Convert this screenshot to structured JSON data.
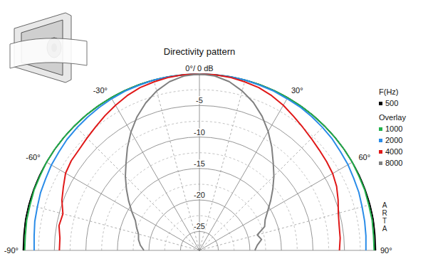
{
  "chart_data": {
    "type": "polar",
    "title": "Directivity pattern",
    "annotations": [
      "F(Hz)",
      "Overlay",
      "ARTA"
    ],
    "grid": true,
    "legend": "right",
    "x": [
      -90,
      -85,
      -80,
      -75,
      -70,
      -65,
      -60,
      -55,
      -50,
      -45,
      -40,
      -35,
      -30,
      -25,
      -20,
      -15,
      -10,
      -5,
      0,
      5,
      10,
      15,
      20,
      25,
      30,
      35,
      40,
      45,
      50,
      55,
      60,
      65,
      70,
      75,
      80,
      85,
      90
    ],
    "xlim": [
      -90,
      90
    ],
    "xticks": [
      {
        "value": -90,
        "label": "-90°"
      },
      {
        "value": -60,
        "label": "-60°"
      },
      {
        "value": -30,
        "label": "-30°"
      },
      {
        "value": 0,
        "label": "0°/ 0 dB"
      },
      {
        "value": 30,
        "label": "30°"
      },
      {
        "value": 60,
        "label": "60°"
      },
      {
        "value": 90,
        "label": "90°"
      }
    ],
    "ylim": [
      -28,
      0
    ],
    "yticks": [
      -25,
      -20,
      -15,
      -10,
      -5
    ],
    "series": [
      {
        "name": "500",
        "color": "#000000",
        "values": [
          -0.1,
          -0.1,
          0,
          0,
          0,
          0,
          0,
          0,
          0,
          0,
          0,
          0,
          0,
          0,
          0,
          0,
          0,
          0,
          0,
          0,
          0,
          0,
          0,
          0,
          0,
          0,
          0,
          0,
          0,
          0,
          0,
          0,
          0,
          0,
          0,
          -0.1,
          -0.1
        ]
      },
      {
        "name": "1000",
        "color": "#22b14c",
        "values": [
          -0.3,
          -0.3,
          -0.2,
          -0.2,
          -0.1,
          -0.1,
          0,
          0,
          0,
          0,
          0,
          0,
          0,
          0,
          0,
          0,
          0,
          0,
          0,
          0,
          0,
          0,
          0,
          0,
          0,
          0,
          0,
          0,
          0,
          0,
          0,
          -0.1,
          -0.1,
          -0.2,
          -0.2,
          -0.3,
          -0.3
        ]
      },
      {
        "name": "2000",
        "color": "#2a8ce8",
        "values": [
          -1.8,
          -1.7,
          -1.5,
          -1.4,
          -1.2,
          -1.1,
          -0.9,
          -0.8,
          -0.6,
          -0.5,
          -0.4,
          -0.3,
          -0.2,
          -0.1,
          -0.1,
          0,
          0,
          0,
          0,
          0,
          0,
          0,
          -0.1,
          -0.1,
          -0.2,
          -0.2,
          -0.3,
          -0.4,
          -0.5,
          -0.7,
          -0.8,
          -1.0,
          -1.1,
          -1.3,
          -1.4,
          -1.5,
          -1.6
        ]
      },
      {
        "name": "4000",
        "color": "#e01818",
        "values": [
          -5.8,
          -5.8,
          -5.4,
          -5.6,
          -4.8,
          -4.2,
          -3.5,
          -3.2,
          -3.1,
          -2.8,
          -2.4,
          -1.9,
          -1.4,
          -0.9,
          -0.5,
          -0.3,
          -0.1,
          0,
          0,
          0,
          -0.1,
          -0.3,
          -0.5,
          -0.9,
          -1.4,
          -2.0,
          -2.5,
          -2.9,
          -3.2,
          -3.4,
          -3.6,
          -4.0,
          -4.6,
          -5.2,
          -5.5,
          -5.6,
          -5.8
        ]
      },
      {
        "name": "8000",
        "color": "#808080",
        "values": [
          -19.2,
          -18.6,
          -18.2,
          -18.0,
          -17.4,
          -16.8,
          -15.6,
          -14.3,
          -12.9,
          -11.4,
          -9.9,
          -8.1,
          -6.3,
          -4.6,
          -3.1,
          -1.8,
          -0.8,
          -0.2,
          0,
          -0.2,
          -0.8,
          -1.8,
          -3.0,
          -4.5,
          -6.2,
          -8.0,
          -9.8,
          -11.3,
          -12.8,
          -14.2,
          -15.5,
          -16.5,
          -17.0,
          -18.5,
          -18.0,
          -18.8,
          -19.2
        ]
      }
    ]
  }
}
